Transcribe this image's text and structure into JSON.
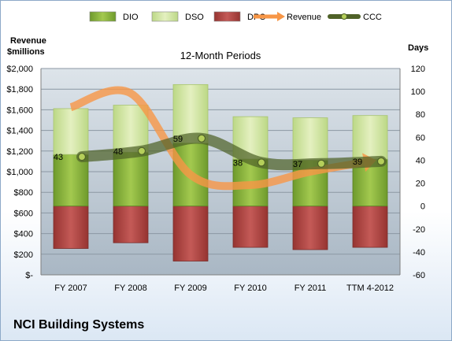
{
  "chart_data": {
    "type": "bar",
    "title": "12-Month Periods",
    "company": "NCI Building Systems",
    "ylabel_left": [
      "Revenue",
      "$millions"
    ],
    "ylabel_right": "Days",
    "categories": [
      "FY 2007",
      "FY 2008",
      "FY 2009",
      "FY 2010",
      "FY 2011",
      "TTM 4-2012"
    ],
    "y_left_ticks": [
      "$-",
      "$200",
      "$400",
      "$600",
      "$800",
      "$1,000",
      "$1,200",
      "$1,400",
      "$1,600",
      "$1,800",
      "$2,000"
    ],
    "y_left_range": [
      0,
      2000
    ],
    "y_right_ticks": [
      "-60",
      "-40",
      "-20",
      "0",
      "20",
      "40",
      "60",
      "80",
      "100",
      "120"
    ],
    "y_right_range": [
      -60,
      120
    ],
    "grid": true,
    "legend": {
      "placement": "top",
      "entries": [
        {
          "name": "DIO",
          "color": "#8cbd3c"
        },
        {
          "name": "DSO",
          "color": "#d5e8a2"
        },
        {
          "name": "DPO",
          "color": "#c0504d"
        },
        {
          "name": "Revenue",
          "color": "#f79646"
        },
        {
          "name": "CCC",
          "color": "#4f6228"
        }
      ]
    },
    "series": [
      {
        "name": "DIO",
        "axis": "right",
        "values": [
          45,
          47,
          55,
          41,
          40,
          41
        ]
      },
      {
        "name": "DSO",
        "axis": "right",
        "values": [
          40,
          41,
          51,
          37,
          37,
          38
        ]
      },
      {
        "name": "DPO",
        "axis": "right",
        "values": [
          -37,
          -32,
          -48,
          -36,
          -38,
          -36
        ]
      },
      {
        "name": "Revenue",
        "axis": "left",
        "values": [
          1625,
          1760,
          970,
          870,
          1000,
          1100
        ]
      },
      {
        "name": "CCC",
        "axis": "right",
        "values": [
          43,
          48,
          59,
          38,
          37,
          39
        ]
      }
    ],
    "data_labels": [
      "43",
      "48",
      "59",
      "38",
      "37",
      "39"
    ]
  }
}
